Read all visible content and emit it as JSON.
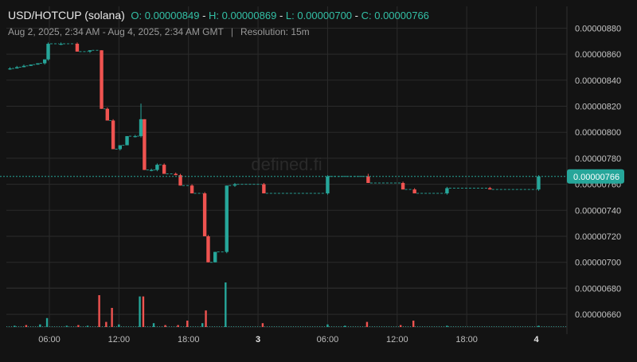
{
  "header": {
    "symbol": "USD/HOTCUP (solana)",
    "open_text": "O: 0.00000849",
    "high_text": "H: 0.00000869",
    "low_text": "L: 0.00000700",
    "close_text": "C: 0.00000766",
    "date_range": "Aug 2, 2025, 2:34 AM - Aug 4, 2025, 2:34 AM GMT",
    "separator": "|",
    "resolution": "Resolution: 15m"
  },
  "watermark": "defined.fi",
  "colors": {
    "up": "#26a69a",
    "down": "#ef5350",
    "background": "#131313",
    "grid": "#2b2b2b",
    "text": "#bdbdbd",
    "last_price_badge": "#26a69a"
  },
  "chart_data": {
    "type": "candlestick",
    "title": "USD/HOTCUP (solana)",
    "x_tick_labels": [
      "06:00",
      "12:00",
      "18:00",
      "3",
      "06:00",
      "12:00",
      "18:00",
      "4"
    ],
    "x_tick_hours": [
      6,
      12,
      18,
      24,
      30,
      36,
      42,
      48
    ],
    "y_tick_labels": [
      "0.00000660",
      "0.00000680",
      "0.00000700",
      "0.00000720",
      "0.00000740",
      "0.00000760",
      "0.00000780",
      "0.00000800",
      "0.00000820",
      "0.00000840",
      "0.00000860",
      "0.00000880"
    ],
    "y_ticks": [
      6.6e-06,
      6.8e-06,
      7e-06,
      7.2e-06,
      7.4e-06,
      7.6e-06,
      7.8e-06,
      8e-06,
      8.2e-06,
      8.4e-06,
      8.6e-06,
      8.8e-06
    ],
    "last_price": 7.66e-06,
    "last_price_label": "0.00000766",
    "grid": true,
    "candles": [
      {
        "t": 2.6,
        "o": 8.49e-06,
        "h": 8.5e-06,
        "l": 8.48e-06,
        "c": 8.49e-06
      },
      {
        "t": 3.2,
        "o": 8.49e-06,
        "h": 8.51e-06,
        "l": 8.49e-06,
        "c": 8.5e-06
      },
      {
        "t": 3.8,
        "o": 8.5e-06,
        "h": 8.52e-06,
        "l": 8.5e-06,
        "c": 8.51e-06
      },
      {
        "t": 4.4,
        "o": 8.51e-06,
        "h": 8.52e-06,
        "l": 8.51e-06,
        "c": 8.52e-06
      },
      {
        "t": 5.0,
        "o": 8.52e-06,
        "h": 8.53e-06,
        "l": 8.52e-06,
        "c": 8.53e-06
      },
      {
        "t": 5.6,
        "o": 8.53e-06,
        "h": 8.56e-06,
        "l": 8.52e-06,
        "c": 8.56e-06
      },
      {
        "t": 5.9,
        "o": 8.56e-06,
        "h": 8.69e-06,
        "l": 8.55e-06,
        "c": 8.68e-06
      },
      {
        "t": 7.0,
        "o": 8.68e-06,
        "h": 8.69e-06,
        "l": 8.67e-06,
        "c": 8.68e-06
      },
      {
        "t": 8.4,
        "o": 8.68e-06,
        "h": 8.69e-06,
        "l": 8.62e-06,
        "c": 8.62e-06
      },
      {
        "t": 9.5,
        "o": 8.62e-06,
        "h": 8.63e-06,
        "l": 8.61e-06,
        "c": 8.63e-06
      },
      {
        "t": 10.5,
        "o": 8.63e-06,
        "h": 8.63e-06,
        "l": 8.18e-06,
        "c": 8.18e-06
      },
      {
        "t": 11.0,
        "o": 8.18e-06,
        "h": 8.19e-06,
        "l": 8.09e-06,
        "c": 8.09e-06
      },
      {
        "t": 11.5,
        "o": 8.09e-06,
        "h": 8.1e-06,
        "l": 7.87e-06,
        "c": 7.87e-06
      },
      {
        "t": 12.1,
        "o": 7.87e-06,
        "h": 7.9e-06,
        "l": 7.86e-06,
        "c": 7.9e-06
      },
      {
        "t": 12.7,
        "o": 7.9e-06,
        "h": 7.97e-06,
        "l": 7.9e-06,
        "c": 7.97e-06
      },
      {
        "t": 13.4,
        "o": 7.97e-06,
        "h": 7.98e-06,
        "l": 7.96e-06,
        "c": 7.97e-06
      },
      {
        "t": 13.9,
        "o": 7.97e-06,
        "h": 8.22e-06,
        "l": 7.96e-06,
        "c": 8.1e-06
      },
      {
        "t": 14.2,
        "o": 8.1e-06,
        "h": 8.1e-06,
        "l": 7.71e-06,
        "c": 7.71e-06
      },
      {
        "t": 14.8,
        "o": 7.71e-06,
        "h": 7.72e-06,
        "l": 7.7e-06,
        "c": 7.71e-06
      },
      {
        "t": 15.3,
        "o": 7.71e-06,
        "h": 7.76e-06,
        "l": 7.7e-06,
        "c": 7.75e-06
      },
      {
        "t": 15.9,
        "o": 7.75e-06,
        "h": 7.76e-06,
        "l": 7.68e-06,
        "c": 7.68e-06
      },
      {
        "t": 16.9,
        "o": 7.68e-06,
        "h": 7.69e-06,
        "l": 7.67e-06,
        "c": 7.67e-06
      },
      {
        "t": 17.3,
        "o": 7.67e-06,
        "h": 7.68e-06,
        "l": 7.59e-06,
        "c": 7.59e-06
      },
      {
        "t": 18.3,
        "o": 7.59e-06,
        "h": 7.6e-06,
        "l": 7.53e-06,
        "c": 7.53e-06
      },
      {
        "t": 19.4,
        "o": 7.53e-06,
        "h": 7.54e-06,
        "l": 7.2e-06,
        "c": 7.2e-06
      },
      {
        "t": 19.7,
        "o": 7.2e-06,
        "h": 7.21e-06,
        "l": 7e-06,
        "c": 7e-06
      },
      {
        "t": 20.3,
        "o": 7e-06,
        "h": 7.08e-06,
        "l": 7e-06,
        "c": 7.08e-06
      },
      {
        "t": 21.3,
        "o": 7.08e-06,
        "h": 7.59e-06,
        "l": 7.07e-06,
        "c": 7.59e-06
      },
      {
        "t": 22.0,
        "o": 7.59e-06,
        "h": 7.61e-06,
        "l": 7.58e-06,
        "c": 7.6e-06
      },
      {
        "t": 24.5,
        "o": 7.6e-06,
        "h": 7.61e-06,
        "l": 7.53e-06,
        "c": 7.53e-06
      },
      {
        "t": 30.0,
        "o": 7.53e-06,
        "h": 7.67e-06,
        "l": 7.52e-06,
        "c": 7.66e-06
      },
      {
        "t": 33.5,
        "o": 7.66e-06,
        "h": 7.68e-06,
        "l": 7.61e-06,
        "c": 7.61e-06
      },
      {
        "t": 36.5,
        "o": 7.61e-06,
        "h": 7.62e-06,
        "l": 7.56e-06,
        "c": 7.56e-06
      },
      {
        "t": 37.5,
        "o": 7.56e-06,
        "h": 7.57e-06,
        "l": 7.53e-06,
        "c": 7.53e-06
      },
      {
        "t": 40.3,
        "o": 7.53e-06,
        "h": 7.58e-06,
        "l": 7.52e-06,
        "c": 7.57e-06
      },
      {
        "t": 44.0,
        "o": 7.57e-06,
        "h": 7.58e-06,
        "l": 7.56e-06,
        "c": 7.56e-06
      },
      {
        "t": 48.2,
        "o": 7.56e-06,
        "h": 7.67e-06,
        "l": 7.55e-06,
        "c": 7.66e-06
      }
    ],
    "volume": [
      {
        "t": 3.0,
        "v": 1.0,
        "up": true
      },
      {
        "t": 4.0,
        "v": 1.5,
        "up": false
      },
      {
        "t": 5.2,
        "v": 2.0,
        "up": true
      },
      {
        "t": 5.8,
        "v": 7.0,
        "up": true
      },
      {
        "t": 7.5,
        "v": 1.0,
        "up": true
      },
      {
        "t": 8.5,
        "v": 1.5,
        "up": false
      },
      {
        "t": 9.3,
        "v": 1.0,
        "up": true
      },
      {
        "t": 10.3,
        "v": 25.0,
        "up": false
      },
      {
        "t": 10.9,
        "v": 4.0,
        "up": false
      },
      {
        "t": 11.4,
        "v": 15.0,
        "up": false
      },
      {
        "t": 12.0,
        "v": 2.0,
        "up": true
      },
      {
        "t": 13.8,
        "v": 24.0,
        "up": true
      },
      {
        "t": 14.1,
        "v": 24.0,
        "up": false
      },
      {
        "t": 15.0,
        "v": 3.0,
        "up": true
      },
      {
        "t": 16.0,
        "v": 1.5,
        "up": false
      },
      {
        "t": 17.1,
        "v": 1.5,
        "up": false
      },
      {
        "t": 17.9,
        "v": 5.0,
        "up": false
      },
      {
        "t": 19.2,
        "v": 3.0,
        "up": true
      },
      {
        "t": 19.5,
        "v": 13.0,
        "up": false
      },
      {
        "t": 21.2,
        "v": 35.0,
        "up": true
      },
      {
        "t": 24.4,
        "v": 3.0,
        "up": false
      },
      {
        "t": 30.0,
        "v": 2.0,
        "up": true
      },
      {
        "t": 31.5,
        "v": 1.0,
        "up": true
      },
      {
        "t": 33.4,
        "v": 4.0,
        "up": false
      },
      {
        "t": 36.3,
        "v": 1.5,
        "up": false
      },
      {
        "t": 37.4,
        "v": 5.0,
        "up": false
      },
      {
        "t": 40.3,
        "v": 1.0,
        "up": true
      },
      {
        "t": 48.2,
        "v": 1.0,
        "up": true
      }
    ]
  }
}
